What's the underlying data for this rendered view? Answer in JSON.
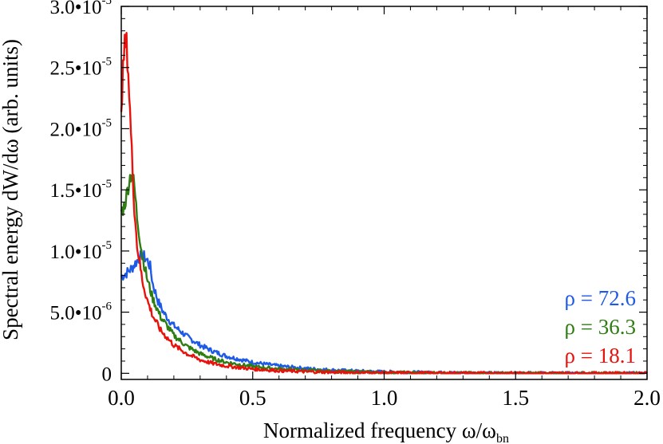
{
  "chart_data": {
    "type": "line",
    "xlabel": {
      "main": "Normalized frequency ω/ω",
      "sub": "bn"
    },
    "ylabel": "Spectral energy dW/dω (arb. units)",
    "xlim": [
      0.0,
      2.0
    ],
    "ylim": [
      -5e-07,
      3e-05
    ],
    "x_ticks": [
      {
        "value": 0.0,
        "label": "0.0"
      },
      {
        "value": 0.5,
        "label": "0.5"
      },
      {
        "value": 1.0,
        "label": "1.0"
      },
      {
        "value": 1.5,
        "label": "1.5"
      },
      {
        "value": 2.0,
        "label": "2.0"
      }
    ],
    "y_ticks": [
      {
        "value": 0,
        "base": "0",
        "exp": ""
      },
      {
        "value": 5e-06,
        "base": "5.0•10",
        "exp": "-6"
      },
      {
        "value": 1e-05,
        "base": "1.0•10",
        "exp": "-5"
      },
      {
        "value": 1.5e-05,
        "base": "1.5•10",
        "exp": "-5"
      },
      {
        "value": 2e-05,
        "base": "2.0•10",
        "exp": "-5"
      },
      {
        "value": 2.5e-05,
        "base": "2.5•10",
        "exp": "-5"
      },
      {
        "value": 3e-05,
        "base": "3.0•10",
        "exp": "-5"
      }
    ],
    "legend_position": "bottom-right",
    "series": [
      {
        "name": "ρ = 72.6",
        "color": "#1f5ae6",
        "x": [
          0.0,
          0.02,
          0.04,
          0.06,
          0.08,
          0.1,
          0.11,
          0.12,
          0.14,
          0.16,
          0.18,
          0.2,
          0.25,
          0.3,
          0.35,
          0.4,
          0.5,
          0.6,
          0.7,
          0.8,
          0.9,
          1.0,
          1.1,
          1.2,
          1.3,
          1.4,
          1.5,
          1.6,
          1.8,
          2.0
        ],
        "y": [
          7.9e-06,
          8.2e-06,
          8.6e-06,
          9.2e-06,
          9.7e-06,
          9.2e-06,
          8.7e-06,
          7.3e-06,
          5.9e-06,
          5e-06,
          4.4e-06,
          3.9e-06,
          3e-06,
          2.3e-06,
          1.8e-06,
          1.4e-06,
          9e-07,
          6e-07,
          4e-07,
          2.7e-07,
          1.8e-07,
          1.2e-07,
          8e-08,
          5e-08,
          3e-08,
          2e-08,
          1e-08,
          1e-08,
          0.0,
          0.0
        ]
      },
      {
        "name": "ρ = 36.3",
        "color": "#2e7d12",
        "x": [
          0.0,
          0.01,
          0.02,
          0.03,
          0.04,
          0.05,
          0.06,
          0.08,
          0.1,
          0.12,
          0.15,
          0.2,
          0.25,
          0.3,
          0.35,
          0.4,
          0.5,
          0.6,
          0.7,
          0.8,
          0.9,
          1.0,
          1.1,
          1.2,
          1.3,
          1.4,
          1.5,
          1.6,
          1.8,
          2.0
        ],
        "y": [
          1.32e-05,
          1.36e-05,
          1.45e-05,
          1.58e-05,
          1.65e-05,
          1.52e-05,
          1.28e-05,
          9.6e-06,
          7.6e-06,
          6.1e-06,
          4.6e-06,
          3.1e-06,
          2.2e-06,
          1.6e-06,
          1.2e-06,
          9e-07,
          5.5e-07,
          3.6e-07,
          2.4e-07,
          1.6e-07,
          1.1e-07,
          7e-08,
          5e-08,
          3e-08,
          2e-08,
          1e-08,
          1e-08,
          0.0,
          0.0,
          0.0
        ]
      },
      {
        "name": "ρ = 18.1",
        "color": "#e8120c",
        "x": [
          0.0,
          0.005,
          0.01,
          0.015,
          0.02,
          0.025,
          0.03,
          0.04,
          0.05,
          0.06,
          0.08,
          0.1,
          0.12,
          0.15,
          0.2,
          0.25,
          0.3,
          0.35,
          0.4,
          0.5,
          0.6,
          0.7,
          0.8,
          0.9,
          1.0,
          1.1,
          1.2,
          1.3,
          1.4,
          1.5,
          1.6,
          1.8,
          2.0
        ],
        "y": [
          2.22e-05,
          2.38e-05,
          2.6e-05,
          2.7e-05,
          2.68e-05,
          2.55e-05,
          2.3e-05,
          1.8e-05,
          1.35e-05,
          1.05e-05,
          7.6e-06,
          5.9e-06,
          4.7e-06,
          3.5e-06,
          2.3e-06,
          1.6e-06,
          1.1e-06,
          8e-07,
          6e-07,
          3.5e-07,
          2.2e-07,
          1.4e-07,
          9e-08,
          6e-08,
          4e-08,
          3e-08,
          2e-08,
          1e-08,
          1e-08,
          0.0,
          0.0,
          0.0,
          0.0
        ]
      }
    ]
  }
}
